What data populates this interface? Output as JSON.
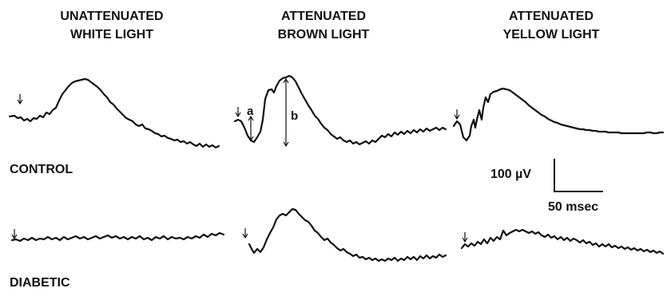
{
  "columns": [
    {
      "line1": "UNATTENUATED",
      "line2": "WHITE LIGHT"
    },
    {
      "line1": "ATTENUATED",
      "line2": "BROWN LIGHT"
    },
    {
      "line1": "ATTENUATED",
      "line2": "YELLOW LIGHT"
    }
  ],
  "rows": [
    {
      "label": "CONTROL"
    },
    {
      "label": "DIABETIC"
    }
  ],
  "wave_labels": {
    "a": "a",
    "b": "b"
  },
  "scale": {
    "amplitude": "100 µV",
    "time": "50 msec"
  }
}
